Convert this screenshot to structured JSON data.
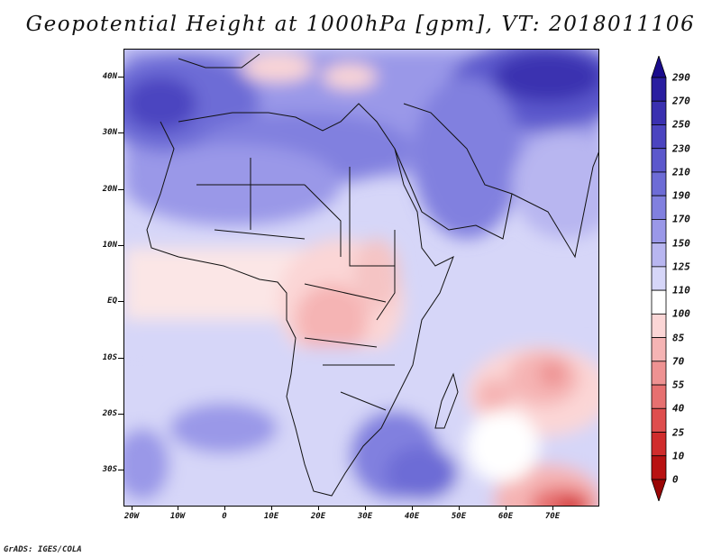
{
  "title": "Geopotential Height at 1000hPa [gpm], VT: 2018011106",
  "credit": "GrADS: IGES/COLA",
  "map": {
    "lat_labels": [
      "40N",
      "30N",
      "20N",
      "10N",
      "EQ",
      "10S",
      "20S",
      "30S"
    ],
    "lon_labels": [
      "20W",
      "10W",
      "0",
      "10E",
      "20E",
      "30E",
      "40E",
      "50E",
      "60E",
      "70E"
    ]
  },
  "colorbar": {
    "labels": [
      "290",
      "270",
      "250",
      "230",
      "210",
      "190",
      "170",
      "150",
      "125",
      "110",
      "100",
      "85",
      "70",
      "55",
      "40",
      "25",
      "10",
      "0"
    ],
    "colors": [
      "#1a0c8c",
      "#2a1ea0",
      "#3a30b0",
      "#4b44c0",
      "#5c58cc",
      "#6d6cd6",
      "#8180df",
      "#9a98e8",
      "#b8b6f0",
      "#d6d6f8",
      "#ffffff",
      "#fbd6d6",
      "#f5b4b4",
      "#ee9292",
      "#e67070",
      "#de4e4e",
      "#d02c2c",
      "#b81212",
      "#9a0606"
    ]
  }
}
